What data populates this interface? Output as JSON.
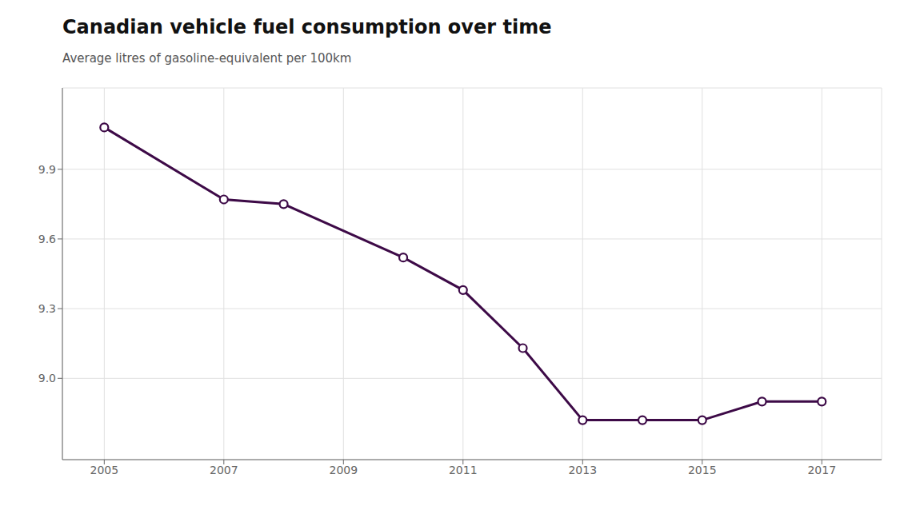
{
  "chart_data": {
    "type": "line",
    "title": "Canadian vehicle fuel consumption over time",
    "subtitle": "Average litres of gasoline-equivalent per 100km",
    "x": [
      2005,
      2007,
      2008,
      2010,
      2011,
      2012,
      2013,
      2014,
      2015,
      2016,
      2017
    ],
    "values": [
      10.08,
      9.77,
      9.75,
      9.52,
      9.38,
      9.13,
      8.82,
      8.82,
      8.82,
      8.9,
      8.9
    ],
    "color": "#3d0a47",
    "marker": "circle",
    "xlim": [
      2004.3,
      2018.0
    ],
    "xticks": [
      2005,
      2007,
      2009,
      2011,
      2013,
      2015,
      2017
    ],
    "ylim": [
      8.65,
      10.25
    ],
    "yticks": [
      {
        "value": 9.0,
        "label": "9.0"
      },
      9.3,
      9.6,
      9.9
    ],
    "grid": true
  }
}
